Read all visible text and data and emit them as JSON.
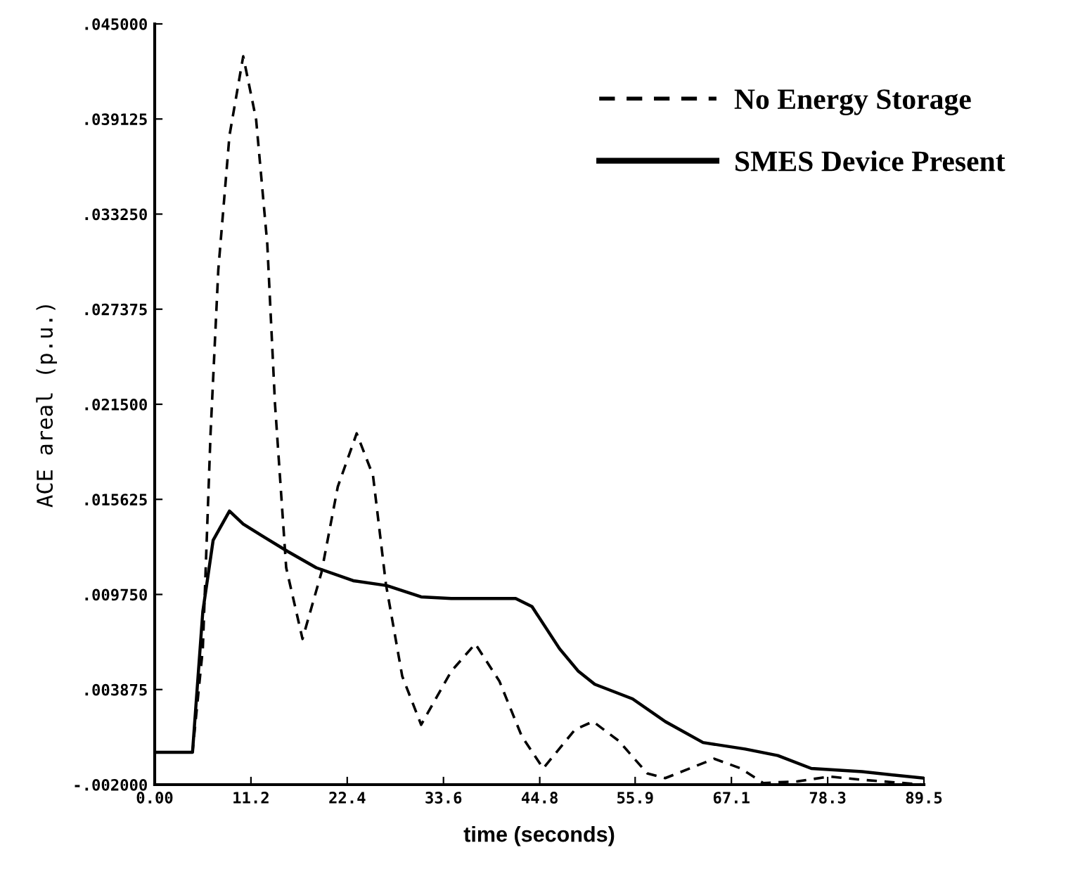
{
  "chart_data": {
    "type": "line",
    "xlabel": "time (seconds)",
    "ylabel": "ACE areal (p.u.)",
    "xlim": [
      0,
      89.5
    ],
    "ylim": [
      -0.002,
      0.045
    ],
    "xticks": [
      {
        "value": 0,
        "label": "0.00"
      },
      11.2,
      22.4,
      33.6,
      44.8,
      55.9,
      67.1,
      78.3,
      89.5
    ],
    "yticks": [
      {
        "value": -0.002,
        "label": "-.002000"
      },
      {
        "value": 0.003875,
        "label": ".003875"
      },
      {
        "value": 0.00975,
        "label": ".009750"
      },
      {
        "value": 0.015625,
        "label": ".015625"
      },
      {
        "value": 0.0215,
        "label": ".021500"
      },
      {
        "value": 0.027375,
        "label": ".027375"
      },
      {
        "value": 0.03325,
        "label": ".033250"
      },
      {
        "value": 0.039125,
        "label": ".039125"
      },
      {
        "value": 0.045,
        "label": ".045000"
      }
    ],
    "grid": false,
    "legend": "top right",
    "marker": "none",
    "series": [
      {
        "name": "No Energy Storage",
        "color": "#000000",
        "line_style": "dashed",
        "x": [
          0,
          4.4,
          5.6,
          6.5,
          7.4,
          8.7,
          10.3,
          11.8,
          13.1,
          14.0,
          15.3,
          17.2,
          19.4,
          21.3,
          23.5,
          25.4,
          26.9,
          28.8,
          31.0,
          34.5,
          37.3,
          40.1,
          42.7,
          45.2,
          48.9,
          51.0,
          54.0,
          57.3,
          59.4,
          65.1,
          68.2,
          70.8,
          74.8,
          78.5,
          82.3,
          89.5
        ],
        "values": [
          0,
          0,
          0.0064,
          0.0197,
          0.0298,
          0.0381,
          0.043,
          0.0391,
          0.0314,
          0.0215,
          0.0114,
          0.007,
          0.0111,
          0.0164,
          0.0197,
          0.0171,
          0.0104,
          0.0047,
          0.0017,
          0.005,
          0.0067,
          0.0044,
          0.001,
          -0.001,
          0.0014,
          0.0019,
          0.0007,
          -0.0013,
          -0.0016,
          -0.0004,
          -0.001,
          -0.0019,
          -0.0018,
          -0.0015,
          -0.0017,
          -0.002
        ]
      },
      {
        "name": "SMES Device Present",
        "color": "#000000",
        "line_style": "solid",
        "x": [
          0,
          4.4,
          5.6,
          6.8,
          8.7,
          10.3,
          12.4,
          15.5,
          18.8,
          23.1,
          27.0,
          31.0,
          34.5,
          42.0,
          43.9,
          47.1,
          49.3,
          51.2,
          55.6,
          59.4,
          63.8,
          68.7,
          72.5,
          76.4,
          82.3,
          89.5
        ],
        "values": [
          0,
          0,
          0.0087,
          0.0131,
          0.0149,
          0.0141,
          0.0134,
          0.0124,
          0.0114,
          0.0106,
          0.0103,
          0.0096,
          0.0095,
          0.0095,
          0.009,
          0.0064,
          0.005,
          0.0042,
          0.0033,
          0.0019,
          0.0006,
          0.0002,
          -0.0002,
          -0.001,
          -0.0012,
          -0.0016
        ]
      }
    ]
  }
}
